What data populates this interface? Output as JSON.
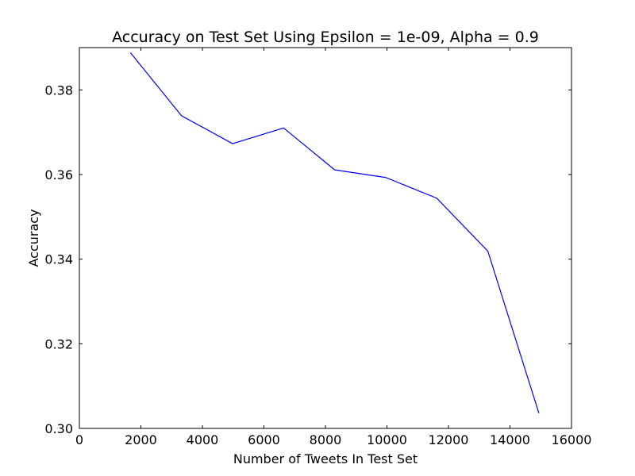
{
  "chart_data": {
    "type": "line",
    "title": "Accuracy on Test Set Using Epsilon = 1e-09, Alpha = 0.9",
    "xlabel": "Number of Tweets In Test Set",
    "ylabel": "Accuracy",
    "xlim": [
      0,
      16000
    ],
    "ylim": [
      0.3,
      0.39
    ],
    "xticks": [
      0,
      2000,
      4000,
      6000,
      8000,
      10000,
      12000,
      14000,
      16000
    ],
    "xtick_labels": [
      "0",
      "2000",
      "4000",
      "6000",
      "8000",
      "10000",
      "12000",
      "14000",
      "16000"
    ],
    "yticks": [
      0.3,
      0.32,
      0.34,
      0.36,
      0.38
    ],
    "ytick_labels": [
      "0.30",
      "0.32",
      "0.34",
      "0.36",
      "0.38"
    ],
    "grid": false,
    "color": "#0000ff",
    "series": [
      {
        "x": [
          1660,
          3320,
          4980,
          6640,
          8300,
          9960,
          11620,
          13280,
          14940
        ],
        "y": [
          0.3888,
          0.3739,
          0.3673,
          0.371,
          0.3611,
          0.3593,
          0.3544,
          0.3419,
          0.3036
        ]
      }
    ]
  }
}
